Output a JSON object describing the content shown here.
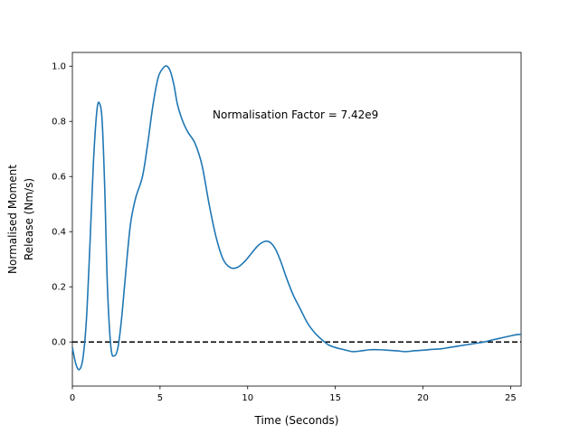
{
  "chart_data": {
    "type": "line",
    "title": "",
    "xlabel": "Time (Seconds)",
    "ylabel_lines": [
      "Normalised Moment",
      "Release (Nm/s)"
    ],
    "xlim": [
      0,
      25.6
    ],
    "ylim": [
      -0.16,
      1.05
    ],
    "xticks": [
      0,
      5,
      10,
      15,
      20,
      25
    ],
    "yticks": [
      0.0,
      0.2,
      0.4,
      0.6,
      0.8,
      1.0
    ],
    "xtick_labels": [
      "0",
      "5",
      "10",
      "15",
      "20",
      "25"
    ],
    "ytick_labels": [
      "0.0",
      "0.2",
      "0.4",
      "0.6",
      "0.8",
      "1.0"
    ],
    "annotation": {
      "text": "Normalisation Factor = 7.42e9",
      "x": 8.0,
      "y": 0.81
    },
    "reference_line": {
      "y": 0.0,
      "style": "dashed",
      "color": "#000000"
    },
    "grid": false,
    "legend": "none",
    "series": [
      {
        "color": "#1f77b4",
        "x": [
          0.0,
          0.2,
          0.4,
          0.6,
          0.8,
          1.0,
          1.2,
          1.4,
          1.55,
          1.7,
          1.85,
          2.0,
          2.2,
          2.4,
          2.6,
          2.8,
          3.0,
          3.3,
          3.6,
          4.0,
          4.3,
          4.6,
          4.9,
          5.2,
          5.4,
          5.6,
          5.8,
          6.0,
          6.3,
          6.6,
          7.0,
          7.4,
          7.8,
          8.2,
          8.6,
          9.0,
          9.4,
          9.8,
          10.2,
          10.6,
          11.0,
          11.3,
          11.6,
          11.9,
          12.2,
          12.6,
          13.0,
          13.4,
          13.8,
          14.2,
          14.6,
          15.0,
          15.5,
          16.0,
          16.5,
          17.0,
          17.5,
          18.0,
          18.5,
          19.0,
          19.5,
          20.0,
          20.5,
          21.0,
          21.5,
          22.0,
          22.5,
          23.0,
          23.5,
          24.0,
          24.5,
          25.0,
          25.3,
          25.6
        ],
        "y": [
          -0.02,
          -0.08,
          -0.1,
          -0.06,
          0.08,
          0.35,
          0.65,
          0.84,
          0.865,
          0.8,
          0.55,
          0.2,
          -0.02,
          -0.05,
          -0.02,
          0.08,
          0.22,
          0.42,
          0.52,
          0.6,
          0.72,
          0.86,
          0.96,
          0.995,
          1.0,
          0.98,
          0.93,
          0.86,
          0.8,
          0.76,
          0.72,
          0.64,
          0.5,
          0.38,
          0.3,
          0.27,
          0.27,
          0.29,
          0.32,
          0.35,
          0.365,
          0.36,
          0.335,
          0.29,
          0.235,
          0.17,
          0.12,
          0.07,
          0.035,
          0.01,
          -0.01,
          -0.02,
          -0.028,
          -0.035,
          -0.032,
          -0.028,
          -0.028,
          -0.03,
          -0.032,
          -0.035,
          -0.032,
          -0.03,
          -0.027,
          -0.025,
          -0.02,
          -0.015,
          -0.01,
          -0.005,
          0.0,
          0.008,
          0.015,
          0.022,
          0.026,
          0.028
        ]
      }
    ]
  }
}
